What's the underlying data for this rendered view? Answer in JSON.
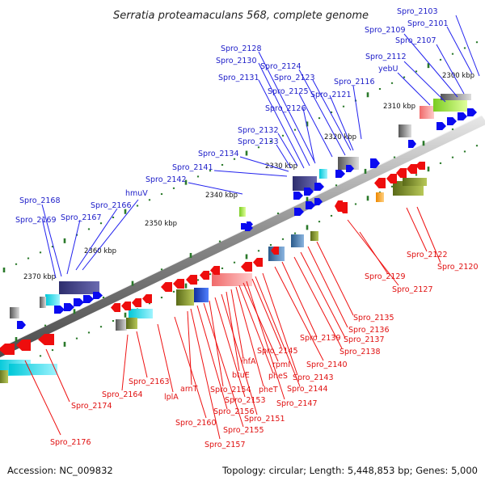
{
  "title": "Serratia proteamaculans 568, complete genome",
  "footer": {
    "accession": "Accession: NC_009832",
    "summary": "Topology: circular; Length: 5,448,853 bp; Genes: 5,000"
  },
  "position_labels": [
    "2300 kbp",
    "2310 kbp",
    "2320 kbp",
    "2330 kbp",
    "2340 kbp",
    "2350 kbp",
    "2360 kbp",
    "2370 kbp"
  ],
  "top_strand_labels": [
    "Spro_2103",
    "Spro_2101",
    "Spro_2109",
    "Spro_2107",
    "Spro_2112",
    "yebU",
    "Spro_2116",
    "Spro_2121",
    "Spro_2123",
    "Spro_2124",
    "Spro_2125",
    "Spro_2126",
    "Spro_2128",
    "Spro_2130",
    "Spro_2131",
    "Spro_2132",
    "Spro_2133",
    "Spro_2134",
    "Spro_2141",
    "Spro_2142",
    "hmuV",
    "Spro_2166",
    "Spro_2167",
    "Spro_2168",
    "Spro_2169"
  ],
  "bottom_strand_labels": [
    "Spro_2122",
    "Spro_2120",
    "Spro_2129",
    "Spro_2127",
    "Spro_2135",
    "Spro_2136",
    "Spro_2137",
    "Spro_2138",
    "Spro_2139",
    "Spro_2140",
    "Spro_2143",
    "Spro_2144",
    "Spro_2145",
    "Spro_2147",
    "rpmI",
    "pheS",
    "pheT",
    "ihfA",
    "btuE",
    "Spro_2151",
    "Spro_2153",
    "Spro_2154",
    "Spro_2155",
    "Spro_2156",
    "Spro_2157",
    "arnT",
    "Spro_2160",
    "lplA",
    "Spro_2163",
    "Spro_2164",
    "Spro_2174",
    "Spro_2176"
  ],
  "colors": {
    "forward_gene": "#0a0af0",
    "reverse_gene": "#ee0d0d",
    "forward_label": "#1c1cc8",
    "reverse_label": "#e01010",
    "backbone": "#a0a0a0",
    "tick": "#2b7a2b"
  }
}
